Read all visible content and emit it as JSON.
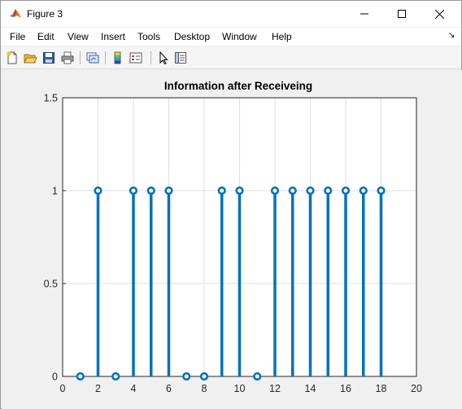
{
  "window": {
    "title": "Figure 3",
    "controls": {
      "minimize": "minimize",
      "maximize": "maximize",
      "close": "close"
    }
  },
  "menu": {
    "items": [
      "File",
      "Edit",
      "View",
      "Insert",
      "Tools",
      "Desktop",
      "Window",
      "Help"
    ],
    "dock_arrow": "↘"
  },
  "toolbar": {
    "buttons": [
      "new-figure-icon",
      "open-file-icon",
      "save-icon",
      "print-icon",
      "link-plot-icon",
      "insert-colorbar-icon",
      "insert-legend-icon",
      "edit-plot-icon",
      "property-inspector-icon"
    ]
  },
  "colors": {
    "stem": "#0072bd",
    "axes_bg": "#ffffff",
    "figure_bg": "#f0f0f0",
    "grid": "#dfdfdf"
  },
  "chart_data": {
    "type": "stem",
    "title": "Information after Receiveing",
    "xlabel": "",
    "ylabel": "",
    "x": [
      1,
      2,
      3,
      4,
      5,
      6,
      7,
      8,
      9,
      10,
      11,
      12,
      13,
      14,
      15,
      16,
      17,
      18
    ],
    "values": [
      0,
      1,
      0,
      1,
      1,
      1,
      0,
      0,
      1,
      1,
      0,
      1,
      1,
      1,
      1,
      1,
      1,
      1
    ],
    "xlim": [
      0,
      20
    ],
    "ylim": [
      0,
      1.5
    ],
    "xticks": [
      "0",
      "2",
      "4",
      "6",
      "8",
      "10",
      "12",
      "14",
      "16",
      "18",
      "20"
    ],
    "yticks": [
      "0",
      "0.5",
      "1",
      "1.5"
    ],
    "grid": true,
    "legend": "none"
  }
}
